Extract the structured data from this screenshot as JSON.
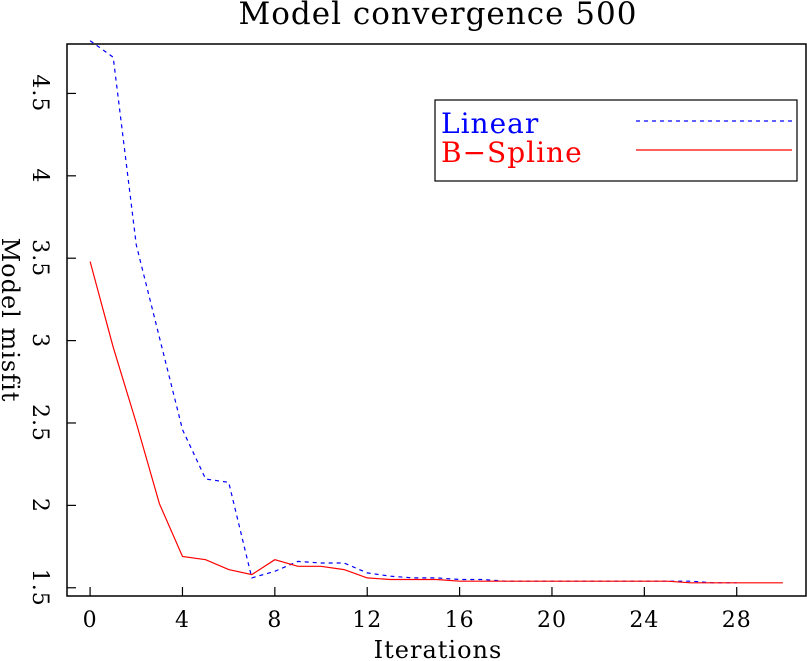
{
  "chart_data": {
    "type": "line",
    "title": "Model convergence 500",
    "xlabel": "Iterations",
    "ylabel": "Model misfit",
    "xlim": [
      -1,
      31
    ],
    "ylim": [
      1.45,
      4.8
    ],
    "xticks": [
      0,
      4,
      8,
      12,
      16,
      20,
      24,
      28
    ],
    "yticks": [
      1.5,
      2,
      2.5,
      3,
      3.5,
      4,
      4.5
    ],
    "ytick_labels": [
      "1.5",
      "2",
      "2.5",
      "3",
      "3.5",
      "4",
      "4.5"
    ],
    "grid": false,
    "legend_position": "top-right",
    "series": [
      {
        "name": "Linear",
        "color": "#0000ff",
        "dash": "dashed",
        "x": [
          0,
          1,
          2,
          3,
          4,
          5,
          6,
          7,
          8,
          9,
          10,
          11,
          12,
          13,
          14,
          15,
          16,
          17,
          18,
          19,
          20,
          21,
          22,
          23,
          24,
          25,
          26,
          27,
          28
        ],
        "y": [
          4.82,
          4.72,
          3.58,
          3.02,
          2.46,
          2.16,
          2.14,
          1.56,
          1.6,
          1.66,
          1.65,
          1.65,
          1.59,
          1.57,
          1.56,
          1.56,
          1.55,
          1.55,
          1.54,
          1.54,
          1.54,
          1.54,
          1.54,
          1.54,
          1.54,
          1.54,
          1.54,
          1.53,
          1.53
        ]
      },
      {
        "name": "B−Spline",
        "color": "#ff0000",
        "dash": "solid",
        "x": [
          0,
          1,
          2,
          3,
          4,
          5,
          6,
          7,
          8,
          9,
          10,
          11,
          12,
          13,
          14,
          15,
          16,
          17,
          18,
          19,
          20,
          21,
          22,
          23,
          24,
          25,
          26,
          27,
          28,
          29,
          30
        ],
        "y": [
          3.48,
          2.96,
          2.5,
          2.01,
          1.69,
          1.67,
          1.61,
          1.58,
          1.67,
          1.63,
          1.63,
          1.61,
          1.56,
          1.55,
          1.55,
          1.55,
          1.54,
          1.54,
          1.54,
          1.54,
          1.54,
          1.54,
          1.54,
          1.54,
          1.54,
          1.54,
          1.53,
          1.53,
          1.53,
          1.53,
          1.53
        ]
      }
    ]
  }
}
